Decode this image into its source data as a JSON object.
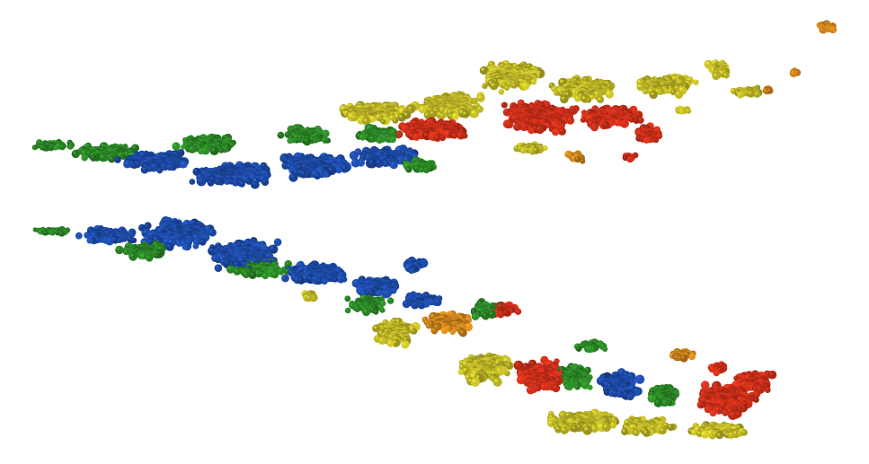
{
  "image": {
    "background": "#ffffff",
    "palette": {
      "blue": "#1f4fb0",
      "green": "#2f8f2a",
      "yellow": "#c9c12a",
      "orange": "#d98a1e",
      "red": "#d8321c"
    },
    "clouds": [
      {
        "name": "upper-particle-cloud",
        "color_order": [
          "green",
          "blue",
          "yellow",
          "red",
          "orange"
        ]
      },
      {
        "name": "lower-particle-cloud",
        "color_order": [
          "green",
          "blue",
          "yellow",
          "red",
          "green",
          "blue"
        ]
      }
    ]
  }
}
